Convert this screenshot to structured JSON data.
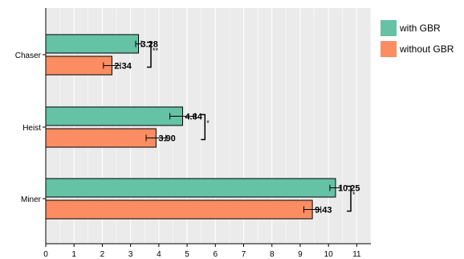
{
  "chart_data": {
    "type": "bar",
    "orientation": "horizontal",
    "categories": [
      "Chaser",
      "Heist",
      "Miner"
    ],
    "series": [
      {
        "name": "with GBR",
        "color": "#66c2a5",
        "values": [
          3.28,
          4.84,
          10.25
        ],
        "labels": [
          "3.28",
          "4.84",
          "10.25"
        ],
        "errors": [
          0.1,
          0.45,
          0.2
        ]
      },
      {
        "name": "without GBR",
        "color": "#fc8d62",
        "values": [
          2.34,
          3.9,
          9.43
        ],
        "labels": [
          "2.34",
          "3.90",
          "9.43"
        ],
        "errors": [
          0.3,
          0.35,
          0.3
        ]
      }
    ],
    "significance": [
      "**",
      "*",
      "*"
    ],
    "xlim": [
      0,
      11.5
    ],
    "xticks": [
      "0",
      "1",
      "2",
      "3",
      "4",
      "5",
      "6",
      "7",
      "8",
      "9",
      "10",
      "11"
    ],
    "title": "",
    "xlabel": "",
    "ylabel": "",
    "grid": true,
    "background": "#ebebeb",
    "legend_position": "right-top"
  }
}
